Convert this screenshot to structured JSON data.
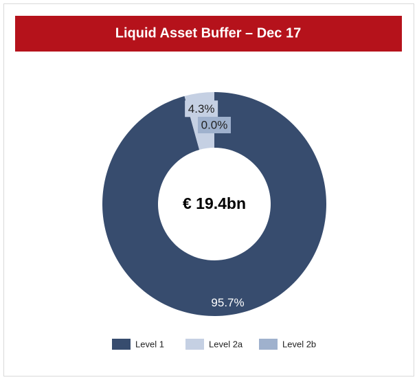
{
  "chart_data": {
    "type": "donut",
    "title": "Liquid Asset Buffer – Dec 17",
    "center_label": "€ 19.4bn",
    "categories": [
      "Level 1",
      "Level 2a",
      "Level 2b"
    ],
    "values": [
      95.7,
      4.3,
      0.0
    ],
    "value_labels": [
      "95.7%",
      "4.3%",
      "0.0%"
    ],
    "colors": [
      "#374c6e",
      "#c5d0e3",
      "#9fb1cd"
    ],
    "legend": "bottom"
  }
}
